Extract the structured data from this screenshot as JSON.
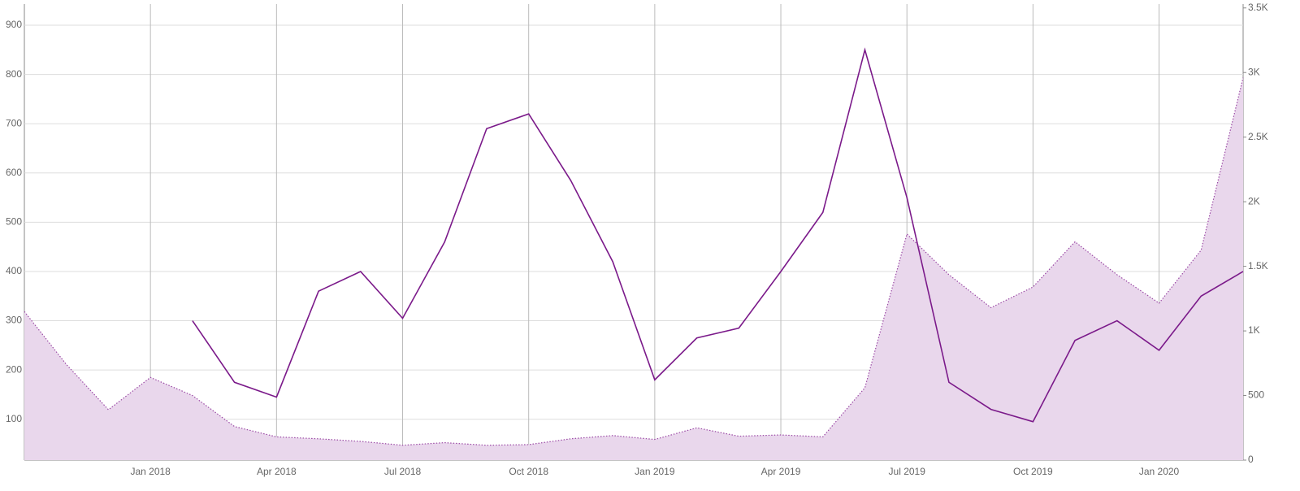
{
  "chart_data": {
    "type": "line",
    "x": [
      "2017-10",
      "2017-11",
      "2017-12",
      "2018-01",
      "2018-02",
      "2018-03",
      "2018-04",
      "2018-05",
      "2018-06",
      "2018-07",
      "2018-08",
      "2018-09",
      "2018-10",
      "2018-11",
      "2018-12",
      "2019-01",
      "2019-02",
      "2019-03",
      "2019-04",
      "2019-05",
      "2019-06",
      "2019-07",
      "2019-08",
      "2019-09",
      "2019-10",
      "2019-11",
      "2019-12",
      "2020-01",
      "2020-02",
      "2020-03"
    ],
    "xlim": [
      "2017-10",
      "2020-03"
    ],
    "xticks": [
      {
        "value": "2018-01",
        "label": "Jan 2018"
      },
      {
        "value": "2018-04",
        "label": "Apr 2018"
      },
      {
        "value": "2018-07",
        "label": "Jul 2018"
      },
      {
        "value": "2018-10",
        "label": "Oct 2018"
      },
      {
        "value": "2019-01",
        "label": "Jan 2019"
      },
      {
        "value": "2019-04",
        "label": "Apr 2019"
      },
      {
        "value": "2019-07",
        "label": "Jul 2019"
      },
      {
        "value": "2019-10",
        "label": "Oct 2019"
      },
      {
        "value": "2020-01",
        "label": "Jan 2020"
      }
    ],
    "ylim": [
      17,
      943
    ],
    "yticks": [
      100,
      200,
      300,
      400,
      500,
      600,
      700,
      800,
      900
    ],
    "y2lim": [
      0,
      3530
    ],
    "y2ticks": [
      0,
      500,
      {
        "value": 1000,
        "label": "1K"
      },
      {
        "value": 1500,
        "label": "1.5K"
      },
      {
        "value": 2000,
        "label": "2K"
      },
      {
        "value": 2500,
        "label": "2.5K"
      },
      {
        "value": 3000,
        "label": "3K"
      },
      {
        "value": 3500,
        "label": "3.5K"
      }
    ],
    "grid": true,
    "series": [
      {
        "color": "#9b4aa5",
        "fill": "#e9d7ec",
        "area": true,
        "dotted": true,
        "axis": "y2",
        "values": [
          1150,
          740,
          390,
          640,
          500,
          260,
          180,
          165,
          145,
          115,
          135,
          115,
          120,
          165,
          190,
          160,
          250,
          185,
          195,
          180,
          560,
          1750,
          1435,
          1180,
          1340,
          1690,
          1435,
          1215,
          1625,
          2960
        ]
      },
      {
        "color": "#7b1a8a",
        "axis": "y",
        "values": [
          null,
          null,
          null,
          null,
          300,
          175,
          145,
          360,
          400,
          305,
          460,
          690,
          720,
          585,
          420,
          180,
          265,
          285,
          400,
          520,
          850,
          550,
          175,
          120,
          95,
          260,
          300,
          240,
          350,
          400
        ]
      }
    ]
  }
}
